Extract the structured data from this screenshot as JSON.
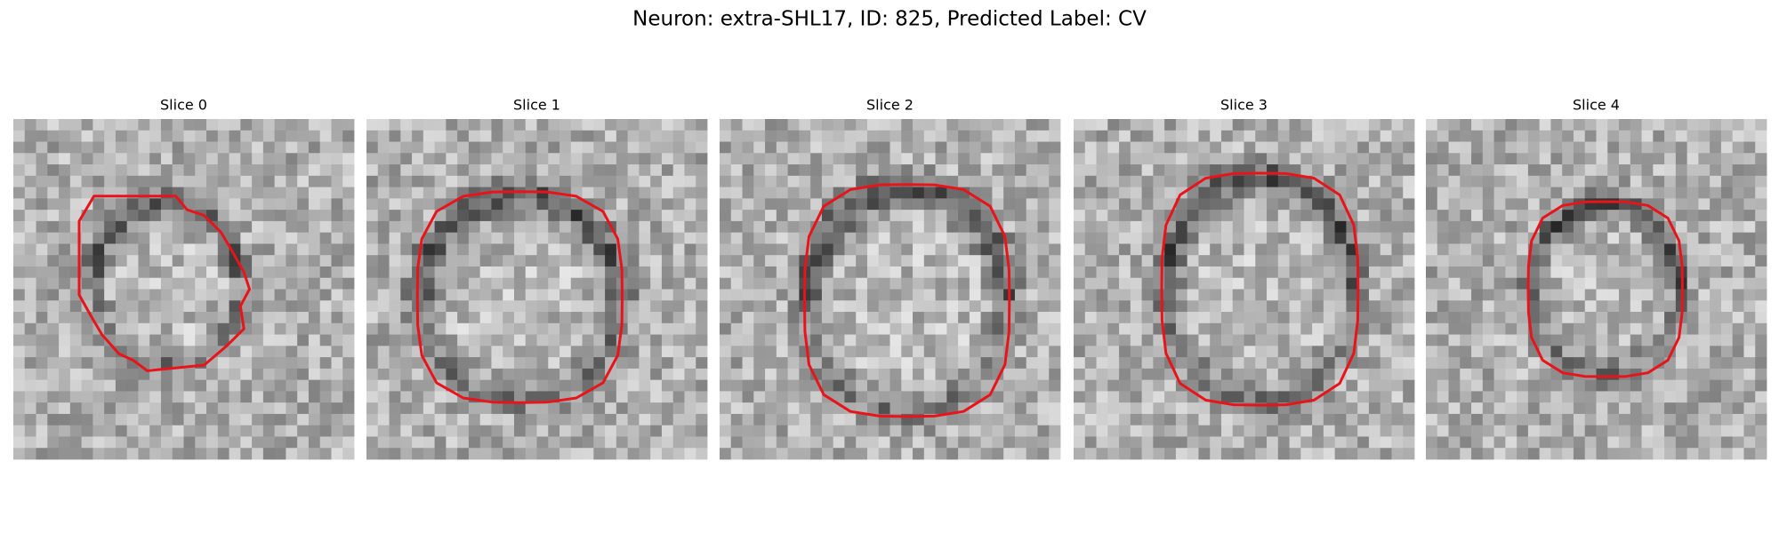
{
  "header": {
    "title": "Neuron: extra-SHL17, ID: 825, Predicted Label: CV"
  },
  "panels": [
    {
      "title": "Slice 0"
    },
    {
      "title": "Slice 1"
    },
    {
      "title": "Slice 2"
    },
    {
      "title": "Slice 3"
    },
    {
      "title": "Slice 4"
    }
  ]
}
